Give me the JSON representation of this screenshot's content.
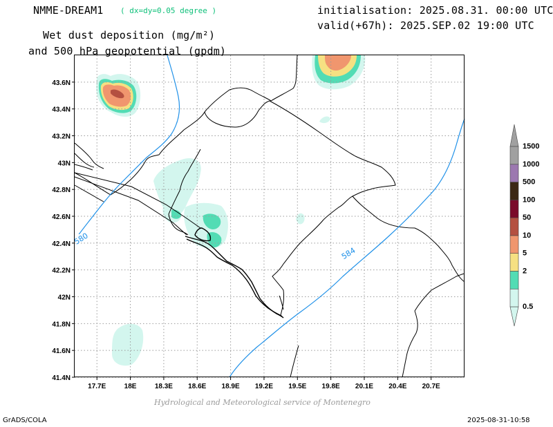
{
  "header": {
    "model_name": "NMME-DREAM1",
    "resolution": "( dx=dy=0.05 degree )",
    "title_line1": "Wet dust deposition (mg/m²)",
    "title_line2": "and 500 hPa geopotential (gpdm)",
    "initialisation": "initialisation: 2025.08.31. 00:00 UTC",
    "valid": "valid(+67h): 2025.SEP.02 19:00 UTC"
  },
  "map": {
    "lon_range": [
      17.5,
      21.0
    ],
    "lat_range": [
      41.4,
      43.8
    ],
    "lon_ticks": [
      {
        "value": 17.7,
        "label": "17.7E"
      },
      {
        "value": 18.0,
        "label": "18E"
      },
      {
        "value": 18.3,
        "label": "18.3E"
      },
      {
        "value": 18.6,
        "label": "18.6E"
      },
      {
        "value": 18.9,
        "label": "18.9E"
      },
      {
        "value": 19.2,
        "label": "19.2E"
      },
      {
        "value": 19.5,
        "label": "19.5E"
      },
      {
        "value": 19.8,
        "label": "19.8E"
      },
      {
        "value": 20.1,
        "label": "20.1E"
      },
      {
        "value": 20.4,
        "label": "20.4E"
      },
      {
        "value": 20.7,
        "label": "20.7E"
      }
    ],
    "lat_ticks": [
      {
        "value": 41.4,
        "label": "41.4N"
      },
      {
        "value": 41.6,
        "label": "41.6N"
      },
      {
        "value": 41.8,
        "label": "41.8N"
      },
      {
        "value": 42.0,
        "label": "42N"
      },
      {
        "value": 42.2,
        "label": "42.2N"
      },
      {
        "value": 42.4,
        "label": "42.4N"
      },
      {
        "value": 42.6,
        "label": "42.6N"
      },
      {
        "value": 42.8,
        "label": "42.8N"
      },
      {
        "value": 43.0,
        "label": "43N"
      },
      {
        "value": 43.2,
        "label": "43.2N"
      },
      {
        "value": 43.4,
        "label": "43.4N"
      },
      {
        "value": 43.6,
        "label": "43.6N"
      }
    ],
    "grid": true,
    "contour_labels": [
      {
        "text": "580",
        "lon": 17.56,
        "lat": 42.43
      },
      {
        "text": "584",
        "lon": 19.96,
        "lat": 42.32
      }
    ],
    "colors": {
      "contour": "#1e90e8",
      "border": "#000000",
      "coast": "#000000"
    }
  },
  "legend": {
    "levels": [
      {
        "label": "0.5",
        "color": "#d3f6ee"
      },
      {
        "label": "2",
        "color": "#52dcb4"
      },
      {
        "label": "5",
        "color": "#f6e082"
      },
      {
        "label": "10",
        "color": "#f0966e"
      },
      {
        "label": "50",
        "color": "#b45040"
      },
      {
        "label": "100",
        "color": "#7a0a2a"
      },
      {
        "label": "500",
        "color": "#3c2814"
      },
      {
        "label": "1000",
        "color": "#9c78b0"
      },
      {
        "label": "1500",
        "color": "#a0a0a0"
      }
    ]
  },
  "footer": {
    "credit": "Hydrological and Meteorological service of Montenegro",
    "left": "GrADS/COLA",
    "right": "2025-08-31-10:58"
  }
}
